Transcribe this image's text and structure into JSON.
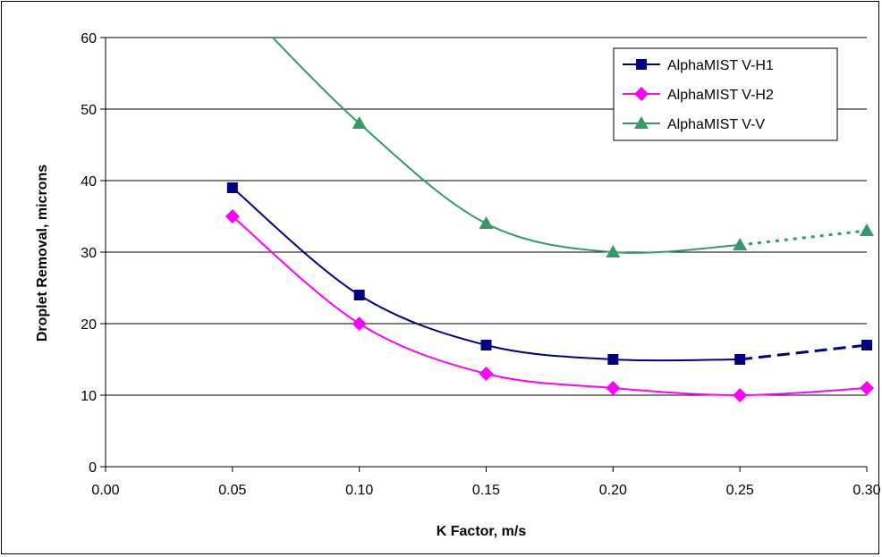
{
  "chart_data": {
    "type": "line",
    "xlabel": "K Factor, m/s",
    "ylabel": "Droplet Removal, microns",
    "xlim": [
      0.0,
      0.3
    ],
    "ylim": [
      0,
      60
    ],
    "x_ticks": [
      "0.00",
      "0.05",
      "0.10",
      "0.15",
      "0.20",
      "0.25",
      "0.30"
    ],
    "y_ticks": [
      "0",
      "10",
      "20",
      "30",
      "40",
      "50",
      "60"
    ],
    "grid": "horizontal",
    "legend_position": "top-right",
    "series": [
      {
        "name": "AlphaMIST V-H1",
        "color": "#000080",
        "marker": "square",
        "x": [
          0.05,
          0.1,
          0.15,
          0.2,
          0.25
        ],
        "values": [
          39,
          24,
          17,
          15,
          15
        ],
        "extension": {
          "style": "dashed",
          "x": [
            0.25,
            0.3
          ],
          "values": [
            15,
            17
          ]
        }
      },
      {
        "name": "AlphaMIST V-H2",
        "color": "#ff00ff",
        "marker": "diamond",
        "x": [
          0.05,
          0.1,
          0.15,
          0.2,
          0.25,
          0.3
        ],
        "values": [
          35,
          20,
          13,
          11,
          10,
          11
        ]
      },
      {
        "name": "AlphaMIST V-V",
        "color": "#339966",
        "marker": "triangle",
        "x": [
          0.1,
          0.15,
          0.2,
          0.25
        ],
        "values": [
          48,
          34,
          30,
          31
        ],
        "extension": {
          "style": "dotted",
          "x": [
            0.25,
            0.3
          ],
          "values": [
            31,
            33
          ]
        }
      }
    ]
  }
}
